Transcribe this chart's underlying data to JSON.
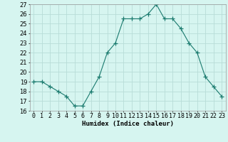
{
  "x": [
    0,
    1,
    2,
    3,
    4,
    5,
    6,
    7,
    8,
    9,
    10,
    11,
    12,
    13,
    14,
    15,
    16,
    17,
    18,
    19,
    20,
    21,
    22,
    23
  ],
  "y": [
    19.0,
    19.0,
    18.5,
    18.0,
    17.5,
    16.5,
    16.5,
    18.0,
    19.5,
    22.0,
    23.0,
    25.5,
    25.5,
    25.5,
    26.0,
    27.0,
    25.5,
    25.5,
    24.5,
    23.0,
    22.0,
    19.5,
    18.5,
    17.5
  ],
  "line_color": "#1a7a6e",
  "marker": "+",
  "marker_size": 4,
  "bg_color": "#d6f5f0",
  "grid_color": "#b8ddd8",
  "xlabel": "Humidex (Indice chaleur)",
  "ylim": [
    16,
    27
  ],
  "xlim_min": -0.5,
  "xlim_max": 23.5,
  "yticks": [
    16,
    17,
    18,
    19,
    20,
    21,
    22,
    23,
    24,
    25,
    26,
    27
  ],
  "xtick_labels": [
    "0",
    "1",
    "2",
    "3",
    "4",
    "5",
    "6",
    "7",
    "8",
    "9",
    "10",
    "11",
    "12",
    "13",
    "14",
    "15",
    "16",
    "17",
    "18",
    "19",
    "20",
    "21",
    "22",
    "23"
  ],
  "axis_fontsize": 6.5,
  "tick_fontsize": 6.0
}
